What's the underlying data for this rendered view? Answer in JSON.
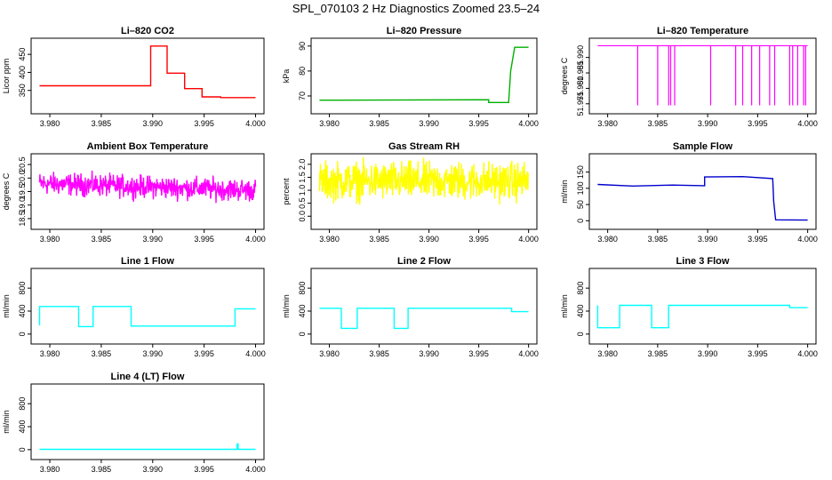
{
  "figure": {
    "title": "SPL_070103  2 Hz Diagnostics Zoomed 23.5–24"
  },
  "chart_data": [
    {
      "type": "line",
      "title": "Li–820 CO2",
      "ylabel": "Licor ppm",
      "color": "#ff0000",
      "xlim": [
        3.9787,
        4.0003
      ],
      "ylim": [
        300,
        480
      ],
      "xticks": [
        "3.980",
        "3.985",
        "3.990",
        "3.995",
        "4.000"
      ],
      "yticks": [
        "350",
        "400",
        "450"
      ],
      "series": [
        {
          "x": [
            3.979,
            3.9898,
            3.9898,
            3.9914,
            3.9914,
            3.9931,
            3.9931,
            3.9948,
            3.9948,
            3.9966,
            3.9966,
            4.0
          ],
          "y": [
            363,
            363,
            473,
            473,
            398,
            398,
            355,
            355,
            332,
            332,
            330,
            330
          ]
        }
      ]
    },
    {
      "type": "line",
      "title": "Li–820 Pressure",
      "ylabel": "kPa",
      "color": "#00b000",
      "xlim": [
        3.9787,
        4.0003
      ],
      "ylim": [
        65,
        91
      ],
      "xticks": [
        "3.980",
        "3.985",
        "3.990",
        "3.995",
        "4.000"
      ],
      "yticks": [
        "70",
        "80",
        "90"
      ],
      "series": [
        {
          "x": [
            3.979,
            3.996,
            3.996,
            3.998,
            3.9982,
            3.9986,
            4.0
          ],
          "y": [
            68.3,
            68.5,
            67.4,
            67.4,
            80,
            89.5,
            89.5
          ]
        }
      ]
    },
    {
      "type": "line",
      "title": "Li–820 Temperature",
      "ylabel": "degrees C",
      "color": "#ff00ff",
      "xlim": [
        3.9787,
        4.0003
      ],
      "ylim": [
        51.9735,
        51.9945
      ],
      "xticks": [
        "3.980",
        "3.985",
        "3.990",
        "3.995",
        "4.000"
      ],
      "yticks": [
        "51.975",
        "51.980",
        "51.985",
        "51.990"
      ],
      "base": 51.9938,
      "dips": [
        3.983,
        3.985,
        3.9861,
        3.9863,
        3.9867,
        3.9903,
        3.9928,
        3.9935,
        3.9944,
        3.9952,
        3.9962,
        3.9967,
        3.9982,
        3.9985,
        3.999,
        3.9996,
        3.9998
      ],
      "dip_value": 51.9745
    },
    {
      "type": "line",
      "title": "Ambient Box Temperature",
      "ylabel": "degrees C",
      "color": "#ff00ff",
      "xlim": [
        3.9787,
        4.0003
      ],
      "ylim": [
        18.3,
        20.7
      ],
      "xticks": [
        "3.980",
        "3.985",
        "3.990",
        "3.995",
        "4.000"
      ],
      "yticks": [
        "18.5",
        "19.0",
        "19.5",
        "20.0",
        "20.5"
      ],
      "series": [
        {
          "x": [
            3.979,
            4.0
          ],
          "y": [
            19.8,
            19.55
          ]
        }
      ],
      "noise": 0.25
    },
    {
      "type": "line",
      "title": "Gas Stream RH",
      "ylabel": "percent",
      "color": "#ffff00",
      "xlim": [
        3.9787,
        4.0003
      ],
      "ylim": [
        -0.3,
        2.2
      ],
      "xticks": [
        "3.980",
        "3.985",
        "3.990",
        "3.995",
        "4.000"
      ],
      "yticks": [
        "0.0",
        "0.5",
        "1.0",
        "1.5",
        "2.0"
      ],
      "series": [
        {
          "x": [
            3.979,
            4.0
          ],
          "y": [
            1.35,
            1.35
          ]
        }
      ],
      "noise": 0.45
    },
    {
      "type": "line",
      "title": "Sample Flow",
      "ylabel": "ml/min",
      "color": "#0000cc",
      "xlim": [
        3.9787,
        4.0003
      ],
      "ylim": [
        -10,
        190
      ],
      "xticks": [
        "3.980",
        "3.985",
        "3.990",
        "3.995",
        "4.000"
      ],
      "yticks": [
        "0",
        "50",
        "100",
        "150"
      ],
      "series": [
        {
          "x": [
            3.979,
            3.9825,
            3.9865,
            3.9897,
            3.9897,
            3.9935,
            3.9965,
            3.9966,
            3.9968,
            4.0
          ],
          "y": [
            112,
            107,
            110,
            108,
            135,
            136,
            130,
            60,
            3,
            2
          ]
        }
      ]
    },
    {
      "type": "line",
      "title": "Line 1 Flow",
      "ylabel": "ml/min",
      "color": "#00ffff",
      "xlim": [
        3.9787,
        4.0003
      ],
      "ylim": [
        -80,
        1050
      ],
      "xticks": [
        "3.980",
        "3.985",
        "3.990",
        "3.995",
        "4.000"
      ],
      "yticks": [
        "0",
        "400",
        "800"
      ],
      "series": [
        {
          "x": [
            3.979,
            3.979,
            3.9828,
            3.9828,
            3.9842,
            3.9842,
            3.9879,
            3.9879,
            3.998,
            3.998,
            4.0
          ],
          "y": [
            150,
            480,
            480,
            130,
            130,
            480,
            480,
            140,
            140,
            440,
            440
          ]
        }
      ]
    },
    {
      "type": "line",
      "title": "Line 2 Flow",
      "ylabel": "ml/min",
      "color": "#00ffff",
      "xlim": [
        3.9787,
        4.0003
      ],
      "ylim": [
        -80,
        1050
      ],
      "xticks": [
        "3.980",
        "3.985",
        "3.990",
        "3.995",
        "4.000"
      ],
      "yticks": [
        "0",
        "400",
        "800"
      ],
      "series": [
        {
          "x": [
            3.979,
            3.9812,
            3.9812,
            3.9828,
            3.9828,
            3.9865,
            3.9865,
            3.9879,
            3.9879,
            3.9983,
            3.9983,
            4.0
          ],
          "y": [
            450,
            450,
            100,
            100,
            450,
            450,
            100,
            100,
            450,
            450,
            390,
            390
          ]
        }
      ]
    },
    {
      "type": "line",
      "title": "Line 3 Flow",
      "ylabel": "ml/min",
      "color": "#00ffff",
      "xlim": [
        3.9787,
        4.0003
      ],
      "ylim": [
        -80,
        1050
      ],
      "xticks": [
        "3.980",
        "3.985",
        "3.990",
        "3.995",
        "4.000"
      ],
      "yticks": [
        "0",
        "400",
        "800"
      ],
      "series": [
        {
          "x": [
            3.979,
            3.979,
            3.9812,
            3.9812,
            3.9844,
            3.9844,
            3.9861,
            3.9861,
            3.9982,
            3.9982,
            4.0
          ],
          "y": [
            500,
            110,
            110,
            500,
            500,
            110,
            110,
            500,
            500,
            460,
            460
          ]
        }
      ]
    },
    {
      "type": "line",
      "title": "Line 4 (LT) Flow",
      "ylabel": "ml/min",
      "color": "#00ffff",
      "xlim": [
        3.9787,
        4.0003
      ],
      "ylim": [
        -80,
        1050
      ],
      "xticks": [
        "3.980",
        "3.985",
        "3.990",
        "3.995",
        "4.000"
      ],
      "yticks": [
        "0",
        "400",
        "800"
      ],
      "series": [
        {
          "x": [
            3.979,
            3.9982,
            3.9982,
            3.9983,
            3.9983,
            4.0
          ],
          "y": [
            5,
            5,
            100,
            100,
            5,
            5
          ]
        }
      ]
    }
  ]
}
